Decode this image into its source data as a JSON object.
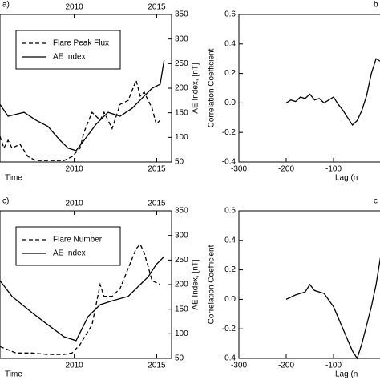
{
  "chart_data": [
    {
      "type": "line",
      "panel_label": "a)",
      "x_label": "Time",
      "y_label": "AE Index, [nT]",
      "y_axis_side": "right",
      "xlim": [
        2005.5,
        2015.9
      ],
      "xticks": [
        2010,
        2015
      ],
      "ylim": [
        50,
        350
      ],
      "yticks": [
        50,
        100,
        150,
        200,
        250,
        300,
        350
      ],
      "series": [
        {
          "name": "Flare Peak Flux",
          "color": "#000000",
          "dash": true,
          "x": [
            2005.5,
            2005.74,
            2005.99,
            2006.23,
            2006.71,
            2007.2,
            2007.68,
            2008.41,
            2009.38,
            2009.87,
            2010.35,
            2010.6,
            2011.08,
            2011.57,
            2011.81,
            2012.3,
            2012.78,
            2013.27,
            2013.75,
            2014.0,
            2014.24,
            2014.72,
            2014.97,
            2015.21
          ],
          "values": [
            102,
            78,
            94,
            78,
            86,
            61,
            53,
            53,
            53,
            61,
            78,
            111,
            151,
            135,
            151,
            118,
            167,
            175,
            216,
            184,
            192,
            159,
            127,
            135
          ]
        },
        {
          "name": "AE Index",
          "color": "#000000",
          "dash": false,
          "x": [
            2005.5,
            2005.99,
            2006.96,
            2007.68,
            2008.41,
            2009.14,
            2009.63,
            2010.11,
            2010.6,
            2011.33,
            2012.05,
            2012.78,
            2013.51,
            2014.24,
            2014.72,
            2015.21,
            2015.45
          ],
          "values": [
            167,
            143,
            151,
            135,
            122,
            94,
            78,
            73,
            94,
            127,
            151,
            143,
            159,
            184,
            200,
            208,
            257
          ]
        }
      ]
    },
    {
      "type": "line",
      "panel_label": "b",
      "x_label": "Lag (n",
      "y_label": "Correlation Coefficient",
      "y_axis_side": "left",
      "xlim": [
        -300,
        0
      ],
      "xticks": [
        -300,
        -200,
        -100
      ],
      "ylim": [
        -0.4,
        0.6
      ],
      "yticks": [
        -0.4,
        -0.2,
        {
          "value": 0,
          "label": "0.0"
        },
        0.2,
        0.4,
        0.6
      ],
      "series": [
        {
          "name": "Correlation",
          "color": "#000000",
          "dash": false,
          "x": [
            -200,
            -190,
            -180,
            -170,
            -160,
            -150,
            -140,
            -130,
            -120,
            -110,
            -100,
            -90,
            -80,
            -70,
            -60,
            -50,
            -40,
            -30,
            -20,
            -10,
            0
          ],
          "values": [
            0.0,
            0.02,
            0.01,
            0.04,
            0.03,
            0.06,
            0.02,
            0.03,
            0.0,
            0.02,
            0.04,
            -0.01,
            -0.05,
            -0.1,
            -0.15,
            -0.12,
            -0.05,
            0.05,
            0.2,
            0.3,
            0.28
          ]
        }
      ]
    },
    {
      "type": "line",
      "panel_label": "c)",
      "x_label": "Time",
      "y_label": "AE Index, [nT]",
      "y_axis_side": "right",
      "xlim": [
        2005.5,
        2015.9
      ],
      "xticks": [
        2010,
        2015
      ],
      "ylim": [
        50,
        350
      ],
      "yticks": [
        50,
        100,
        150,
        200,
        250,
        300,
        350
      ],
      "series": [
        {
          "name": "Flare Number",
          "color": "#000000",
          "dash": true,
          "x": [
            2005.5,
            2006.47,
            2007.44,
            2008.41,
            2009.38,
            2009.87,
            2010.35,
            2011.08,
            2011.57,
            2011.81,
            2012.3,
            2012.78,
            2013.27,
            2013.75,
            2014.0,
            2014.24,
            2014.72,
            2015.21
          ],
          "values": [
            74,
            61,
            61,
            58,
            58,
            61,
            78,
            118,
            200,
            176,
            176,
            192,
            233,
            273,
            282,
            265,
            208,
            200
          ]
        },
        {
          "name": "AE Index",
          "color": "#000000",
          "dash": false,
          "x": [
            2005.5,
            2006.23,
            2007.44,
            2008.41,
            2009.38,
            2010.11,
            2010.35,
            2010.84,
            2011.57,
            2012.3,
            2013.27,
            2014.0,
            2014.48,
            2014.97,
            2015.45
          ],
          "values": [
            208,
            176,
            143,
            118,
            94,
            86,
            102,
            135,
            159,
            167,
            176,
            200,
            216,
            241,
            257
          ]
        }
      ]
    },
    {
      "type": "line",
      "panel_label": "c",
      "x_label": "Lag (n",
      "y_label": "Correlation Coefficient",
      "y_axis_side": "left",
      "xlim": [
        -300,
        0
      ],
      "xticks": [
        -300,
        -200,
        -100
      ],
      "ylim": [
        -0.4,
        0.6
      ],
      "yticks": [
        -0.4,
        -0.2,
        {
          "value": 0,
          "label": "0.0"
        },
        0.2,
        0.4,
        0.6
      ],
      "series": [
        {
          "name": "Correlation",
          "color": "#000000",
          "dash": false,
          "x": [
            -200,
            -180,
            -160,
            -150,
            -140,
            -120,
            -100,
            -80,
            -60,
            -50,
            -40,
            -20,
            -10,
            0
          ],
          "values": [
            0.0,
            0.03,
            0.05,
            0.1,
            0.06,
            0.04,
            -0.05,
            -0.2,
            -0.35,
            -0.4,
            -0.3,
            -0.05,
            0.1,
            0.3
          ]
        }
      ]
    }
  ]
}
